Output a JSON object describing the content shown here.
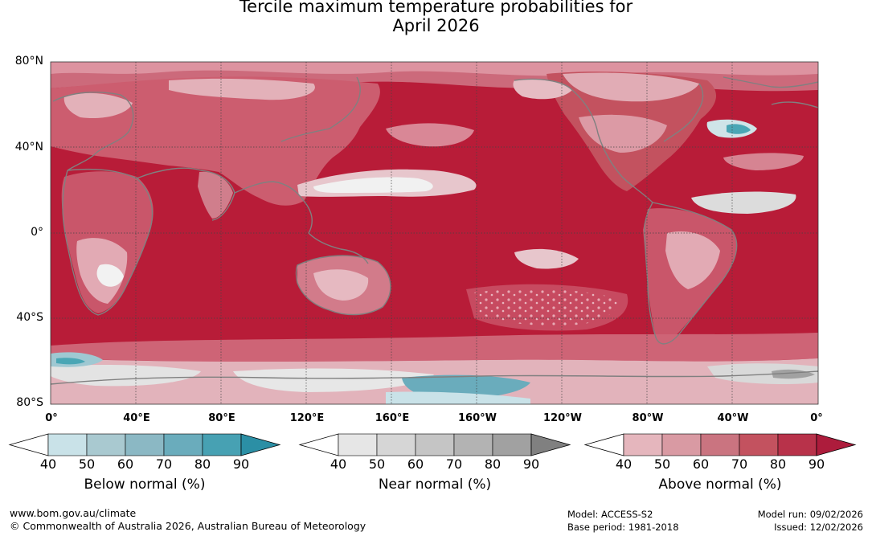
{
  "title": {
    "line1": "Tercile maximum temperature probabilities for",
    "line2": "April 2026"
  },
  "map": {
    "lat_labels": [
      "80°N",
      "40°N",
      "0°",
      "40°S",
      "80°S"
    ],
    "lon_labels": [
      "0°",
      "40°E",
      "80°E",
      "120°E",
      "160°E",
      "160°W",
      "120°W",
      "80°W",
      "40°W",
      "0°"
    ],
    "dominant_category": "Above normal",
    "colors": {
      "ocean_high": "#b81c38",
      "land_mid": "#d47888",
      "pale": "#e6b9c1",
      "grey": "#d9d9d9",
      "teal": "#4aa6b5"
    }
  },
  "colorbars": [
    {
      "name": "Below normal (%)",
      "ticks": [
        "40",
        "50",
        "60",
        "70",
        "80",
        "90"
      ],
      "colors": [
        "#c9e2e8",
        "#a9c9d0",
        "#8bb8c4",
        "#6aacbc",
        "#47a1b3",
        "#2b8fa5"
      ]
    },
    {
      "name": "Near normal (%)",
      "ticks": [
        "40",
        "50",
        "60",
        "70",
        "80",
        "90"
      ],
      "colors": [
        "#e6e6e6",
        "#d6d6d6",
        "#c5c5c5",
        "#b3b3b3",
        "#a1a1a1",
        "#808080"
      ]
    },
    {
      "name": "Above normal (%)",
      "ticks": [
        "40",
        "50",
        "60",
        "70",
        "80",
        "90"
      ],
      "colors": [
        "#e5b6bd",
        "#d99aa3",
        "#ca7480",
        "#c3525f",
        "#b8324a",
        "#ad1c3c"
      ]
    }
  ],
  "footer": {
    "website": "www.bom.gov.au/climate",
    "copyright": "© Commonwealth of Australia 2026, Australian Bureau of Meteorology",
    "model": "Model: ACCESS-S2",
    "base_period": "Base period: 1981-2018",
    "model_run": "Model run: 09/02/2026",
    "issued": "Issued: 12/02/2026"
  }
}
